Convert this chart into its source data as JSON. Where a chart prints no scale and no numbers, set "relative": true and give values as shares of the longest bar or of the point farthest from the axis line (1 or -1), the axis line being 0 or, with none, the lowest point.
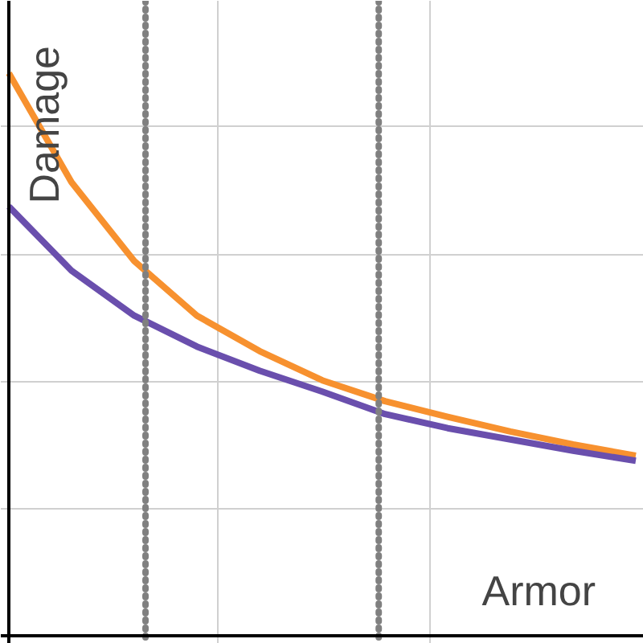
{
  "chart_data": {
    "type": "line",
    "relative": true,
    "xlabel": "Armor",
    "ylabel": "Damage",
    "categories": [
      null,
      null,
      null,
      null,
      null,
      null,
      null,
      null,
      null,
      null,
      null
    ],
    "series": [
      {
        "color": "#f7912f",
        "values": [
          1.0,
          0.806,
          0.666,
          0.569,
          0.506,
          0.454,
          0.417,
          0.389,
          0.363,
          0.34,
          0.32
        ]
      },
      {
        "color": "#6a4fad",
        "values": [
          0.763,
          0.649,
          0.569,
          0.514,
          0.471,
          0.434,
          0.394,
          0.369,
          0.349,
          0.329,
          0.311
        ]
      }
    ],
    "grid": true,
    "tick_labels": false,
    "marker": "none",
    "line_style": "solid"
  }
}
